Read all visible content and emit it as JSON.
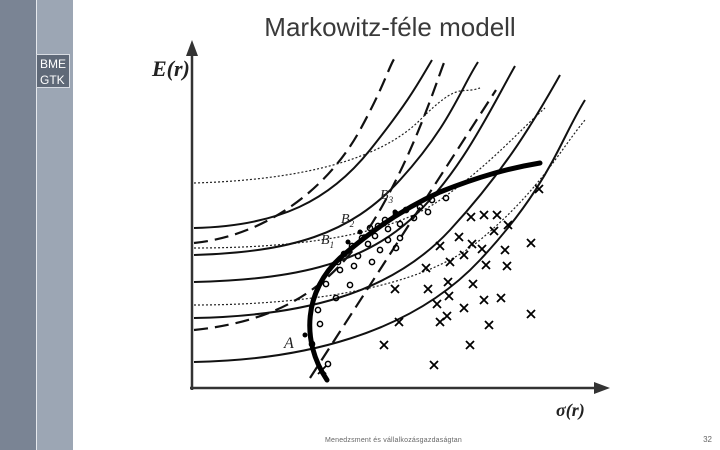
{
  "sidebar": {
    "badge_line1": "BME",
    "badge_line2": "GTK"
  },
  "title": "Markowitz-féle modell",
  "footer": "Menedzsment és vállalkozásgazdaságtan",
  "page_number": "32",
  "axes": {
    "y_label": "E(r)",
    "x_label": "σ(r)"
  },
  "points": {
    "a": "A",
    "b1": "B",
    "b1_sub": "1",
    "b2": "B",
    "b2_sub": "2",
    "b3": "B",
    "b3_sub": "3"
  }
}
